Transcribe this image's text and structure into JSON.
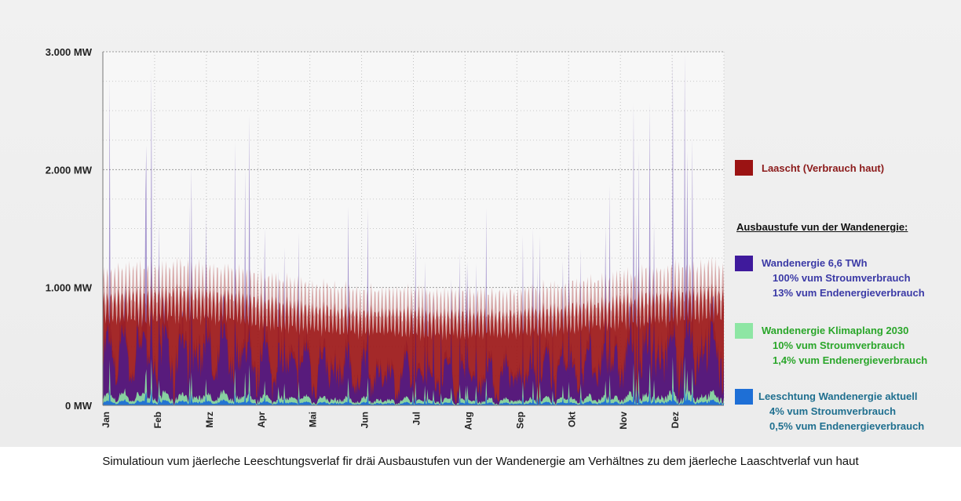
{
  "chart_data": {
    "type": "area",
    "title": "",
    "xlabel": "",
    "ylabel": "",
    "ylim": [
      0,
      3000
    ],
    "y_ticks": [
      "0 MW",
      "1.000 MW",
      "2.000 MW",
      "3.000 MW"
    ],
    "y_tick_values": [
      0,
      1000,
      2000,
      3000
    ],
    "categories": [
      "Jan",
      "Feb",
      "Mrz",
      "Apr",
      "Mai",
      "Jun",
      "Jul",
      "Aug",
      "Sep",
      "Okt",
      "Nov",
      "Dez"
    ],
    "grid": true,
    "legend_position": "right",
    "series": [
      {
        "name": "Laascht (Verbrauch haut)",
        "color": "#9b1313",
        "values": [
          830,
          860,
          830,
          760,
          720,
          700,
          690,
          690,
          720,
          760,
          820,
          860
        ]
      },
      {
        "name": "Wandenergie 6,6 TWh",
        "color": "#3f1a9c",
        "values": [
          780,
          720,
          700,
          560,
          520,
          400,
          390,
          400,
          420,
          560,
          680,
          820
        ]
      },
      {
        "name": "Wandenergie Klimaplang 2030",
        "color": "#8ee6a4",
        "values": [
          78,
          72,
          70,
          56,
          52,
          40,
          39,
          40,
          42,
          56,
          68,
          82
        ]
      },
      {
        "name": "Leeschtung Wandenergie aktuell",
        "color": "#1e6fd6",
        "values": [
          31,
          29,
          28,
          22,
          21,
          16,
          16,
          16,
          17,
          22,
          27,
          33
        ]
      }
    ]
  },
  "legend": {
    "heading": "Ausbaustufe vun der Wandenergie:",
    "load": {
      "label": "Laascht (Verbrauch haut)",
      "color": "#9b1313",
      "text_color": "#8b1a1a"
    },
    "wind_full": {
      "label": "Wandenergie 6,6 TWh",
      "line2": "100% vum Stroumverbrauch",
      "line3": "13% vum Endenergieverbrauch",
      "color": "#3f1a9c",
      "text_color": "#3b3aa6"
    },
    "wind_2030": {
      "label": "Wandenergie Klimaplang 2030",
      "line2": "10% vum Stroumverbrauch",
      "line3": "1,4% vum Endenergieverbrauch",
      "color": "#8ee6a4",
      "text_color": "#2aa62a"
    },
    "wind_now": {
      "label": "Leeschtung Wandenergie aktuell",
      "line2": "4% vum Stroumverbrauch",
      "line3": "0,5% vum Endenergieverbrauch",
      "color": "#1e6fd6",
      "text_color": "#1f6f8f"
    }
  },
  "caption": "Simulatioun vum jäerleche Leeschtungsverlaf fir dräi Ausbaustufen vun der Wandenergie am Verhältnes zu dem jäerleche Laaschtverlaf vun haut"
}
